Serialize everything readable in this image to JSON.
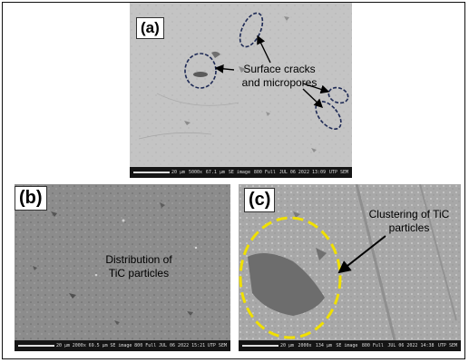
{
  "figure": {
    "panel_a": {
      "label": "(a)",
      "annotation_line1": "Surface cracks",
      "annotation_line2": "and micropores",
      "info": {
        "scale": "20 μm",
        "mag": "5000x",
        "fov": "67.1 μm",
        "mode": "SE image",
        "vac": "800 Full",
        "date": "JUL 06 2022 13:09",
        "sys": "UTP SEM"
      }
    },
    "panel_b": {
      "label": "(b)",
      "annotation_line1": "Distribution of",
      "annotation_line2": "TiC particles",
      "info": {
        "scale": "20 μm",
        "mag": "2000x",
        "fov": "69.5 μm",
        "mode": "SE image",
        "vac": "800 Full",
        "date": "JUL 06 2022 15:21",
        "sys": "UTP SEM"
      }
    },
    "panel_c": {
      "label": "(c)",
      "annotation_line1": "Clustering of TiC",
      "annotation_line2": "particles",
      "info": {
        "scale": "20 μm",
        "mag": "2000x",
        "fov": "134 μm",
        "mode": "SE image",
        "vac": "800 Full",
        "date": "JUL 06 2022 14:38",
        "sys": "UTP SEM"
      }
    },
    "colors": {
      "ellipse_dashed": "#1e2a55",
      "cluster_circle": "#f0e000",
      "arrow": "#000000"
    }
  }
}
